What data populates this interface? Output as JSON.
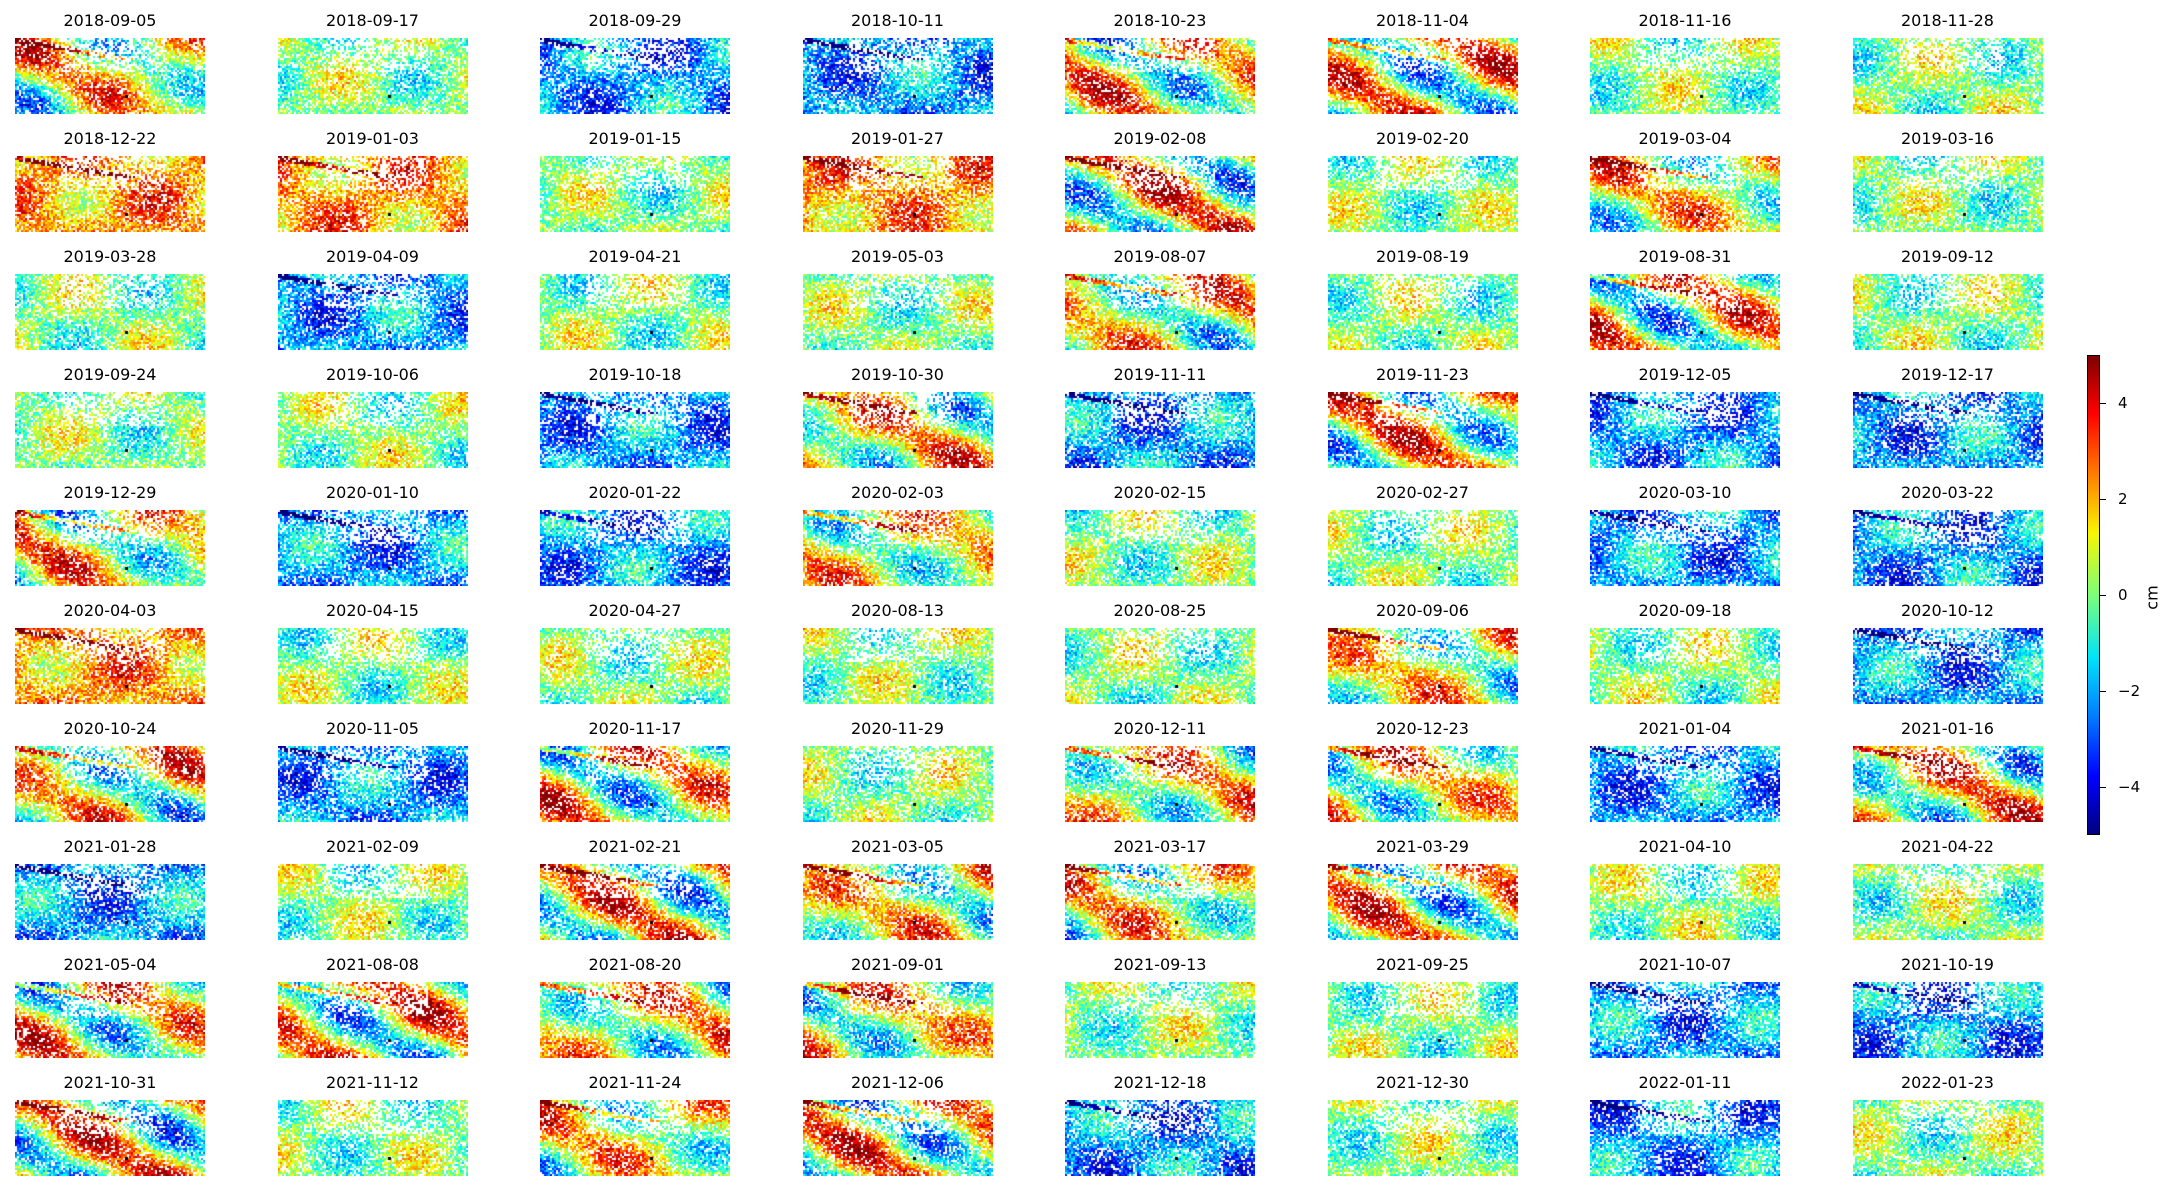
{
  "chart_data": {
    "type": "heatmap",
    "title": "",
    "layout": "small multiples of displacement maps, 8 columns x 10 rows",
    "colormap": "jet",
    "colorbar": {
      "label": "cm",
      "range": [
        -5,
        5
      ],
      "ticks": [
        -4,
        -2,
        0,
        2,
        4
      ],
      "tick_labels": [
        "−4",
        "−2",
        "0",
        "2",
        "4"
      ]
    },
    "panels": [
      {
        "date": "2018-09-05",
        "dominant": "mixed"
      },
      {
        "date": "2018-09-17",
        "dominant": "near-zero"
      },
      {
        "date": "2018-09-29",
        "dominant": "negative"
      },
      {
        "date": "2018-10-11",
        "dominant": "negative"
      },
      {
        "date": "2018-10-23",
        "dominant": "mixed"
      },
      {
        "date": "2018-11-04",
        "dominant": "mixed"
      },
      {
        "date": "2018-11-16",
        "dominant": "near-zero"
      },
      {
        "date": "2018-11-28",
        "dominant": "near-zero"
      },
      {
        "date": "2018-12-22",
        "dominant": "positive"
      },
      {
        "date": "2019-01-03",
        "dominant": "positive"
      },
      {
        "date": "2019-01-15",
        "dominant": "near-zero"
      },
      {
        "date": "2019-01-27",
        "dominant": "positive"
      },
      {
        "date": "2019-02-08",
        "dominant": "mixed"
      },
      {
        "date": "2019-02-20",
        "dominant": "near-zero"
      },
      {
        "date": "2019-03-04",
        "dominant": "mixed"
      },
      {
        "date": "2019-03-16",
        "dominant": "near-zero"
      },
      {
        "date": "2019-03-28",
        "dominant": "near-zero"
      },
      {
        "date": "2019-04-09",
        "dominant": "negative"
      },
      {
        "date": "2019-04-21",
        "dominant": "near-zero"
      },
      {
        "date": "2019-05-03",
        "dominant": "near-zero"
      },
      {
        "date": "2019-08-07",
        "dominant": "mixed"
      },
      {
        "date": "2019-08-19",
        "dominant": "near-zero"
      },
      {
        "date": "2019-08-31",
        "dominant": "mixed"
      },
      {
        "date": "2019-09-12",
        "dominant": "near-zero"
      },
      {
        "date": "2019-09-24",
        "dominant": "near-zero"
      },
      {
        "date": "2019-10-06",
        "dominant": "near-zero"
      },
      {
        "date": "2019-10-18",
        "dominant": "negative"
      },
      {
        "date": "2019-10-30",
        "dominant": "mixed"
      },
      {
        "date": "2019-11-11",
        "dominant": "negative"
      },
      {
        "date": "2019-11-23",
        "dominant": "mixed"
      },
      {
        "date": "2019-12-05",
        "dominant": "negative"
      },
      {
        "date": "2019-12-17",
        "dominant": "negative"
      },
      {
        "date": "2019-12-29",
        "dominant": "mixed"
      },
      {
        "date": "2020-01-10",
        "dominant": "negative"
      },
      {
        "date": "2020-01-22",
        "dominant": "negative"
      },
      {
        "date": "2020-02-03",
        "dominant": "mixed"
      },
      {
        "date": "2020-02-15",
        "dominant": "near-zero"
      },
      {
        "date": "2020-02-27",
        "dominant": "near-zero"
      },
      {
        "date": "2020-03-10",
        "dominant": "negative"
      },
      {
        "date": "2020-03-22",
        "dominant": "negative"
      },
      {
        "date": "2020-04-03",
        "dominant": "positive"
      },
      {
        "date": "2020-04-15",
        "dominant": "near-zero"
      },
      {
        "date": "2020-04-27",
        "dominant": "near-zero"
      },
      {
        "date": "2020-08-13",
        "dominant": "near-zero"
      },
      {
        "date": "2020-08-25",
        "dominant": "near-zero"
      },
      {
        "date": "2020-09-06",
        "dominant": "mixed"
      },
      {
        "date": "2020-09-18",
        "dominant": "near-zero"
      },
      {
        "date": "2020-10-12",
        "dominant": "negative"
      },
      {
        "date": "2020-10-24",
        "dominant": "mixed"
      },
      {
        "date": "2020-11-05",
        "dominant": "negative"
      },
      {
        "date": "2020-11-17",
        "dominant": "mixed"
      },
      {
        "date": "2020-11-29",
        "dominant": "near-zero"
      },
      {
        "date": "2020-12-11",
        "dominant": "mixed"
      },
      {
        "date": "2020-12-23",
        "dominant": "mixed"
      },
      {
        "date": "2021-01-04",
        "dominant": "negative"
      },
      {
        "date": "2021-01-16",
        "dominant": "mixed"
      },
      {
        "date": "2021-01-28",
        "dominant": "negative"
      },
      {
        "date": "2021-02-09",
        "dominant": "near-zero"
      },
      {
        "date": "2021-02-21",
        "dominant": "mixed"
      },
      {
        "date": "2021-03-05",
        "dominant": "mixed"
      },
      {
        "date": "2021-03-17",
        "dominant": "mixed"
      },
      {
        "date": "2021-03-29",
        "dominant": "mixed"
      },
      {
        "date": "2021-04-10",
        "dominant": "near-zero"
      },
      {
        "date": "2021-04-22",
        "dominant": "near-zero"
      },
      {
        "date": "2021-05-04",
        "dominant": "mixed"
      },
      {
        "date": "2021-08-08",
        "dominant": "mixed"
      },
      {
        "date": "2021-08-20",
        "dominant": "mixed"
      },
      {
        "date": "2021-09-01",
        "dominant": "mixed"
      },
      {
        "date": "2021-09-13",
        "dominant": "near-zero"
      },
      {
        "date": "2021-09-25",
        "dominant": "near-zero"
      },
      {
        "date": "2021-10-07",
        "dominant": "negative"
      },
      {
        "date": "2021-10-19",
        "dominant": "negative"
      },
      {
        "date": "2021-10-31",
        "dominant": "mixed"
      },
      {
        "date": "2021-11-12",
        "dominant": "near-zero"
      },
      {
        "date": "2021-11-24",
        "dominant": "mixed"
      },
      {
        "date": "2021-12-06",
        "dominant": "mixed"
      },
      {
        "date": "2021-12-18",
        "dominant": "negative"
      },
      {
        "date": "2021-12-30",
        "dominant": "near-zero"
      },
      {
        "date": "2022-01-11",
        "dominant": "negative"
      },
      {
        "date": "2022-01-23",
        "dominant": "near-zero"
      }
    ]
  }
}
